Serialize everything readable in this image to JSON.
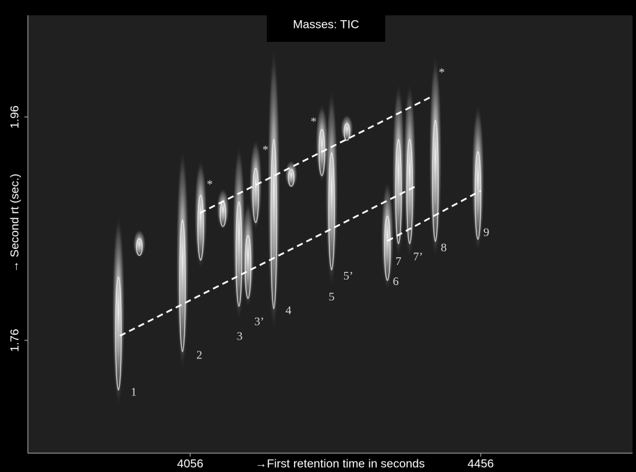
{
  "chart_data": {
    "type": "contour",
    "title": "Masses: TIC",
    "xlabel": "→First retention time in seconds",
    "ylabel": "→ Second rt (sec.)",
    "xlim": [
      3832.5,
      4665
    ],
    "ylim": [
      1.659,
      2.051
    ],
    "xticks": [
      4056,
      4456
    ],
    "yticks": [
      1.76,
      1.96
    ],
    "color": "#ffffff",
    "peaks": [
      {
        "x": 3957.2,
        "ymin": 1.702,
        "ymax": 1.871
      },
      {
        "x": 4045.4,
        "ymin": 1.734,
        "ymax": 1.931
      },
      {
        "x": 4123.1,
        "ymin": 1.778,
        "ymax": 1.934
      },
      {
        "x": 4135.6,
        "ymin": 1.79,
        "ymax": 1.884
      },
      {
        "x": 4171.1,
        "ymin": 1.768,
        "ymax": 2.021
      },
      {
        "x": 4250.7,
        "ymin": 1.809,
        "ymax": 1.984
      },
      {
        "x": 4327.5,
        "ymin": 1.806,
        "ymax": 1.902
      },
      {
        "x": 4342.8,
        "ymin": 1.834,
        "ymax": 1.99
      },
      {
        "x": 4358.2,
        "ymin": 1.834,
        "ymax": 1.99
      },
      {
        "x": 4393.6,
        "ymin": 1.834,
        "ymax": 2.015
      },
      {
        "x": 4452.2,
        "ymin": 1.84,
        "ymax": 1.971
      },
      {
        "x": 4070.4,
        "ymin": 1.824,
        "ymax": 1.921
      },
      {
        "x": 4146.2,
        "ymin": 1.859,
        "ymax": 1.94
      },
      {
        "x": 4237.3,
        "ymin": 1.902,
        "ymax": 1.971
      },
      {
        "x": 4101.1,
        "ymin": 1.859,
        "ymax": 1.896
      },
      {
        "x": 4195.1,
        "ymin": 1.896,
        "ymax": 1.921
      },
      {
        "x": 4271.8,
        "ymin": 1.937,
        "ymax": 1.962
      },
      {
        "x": 3986.0,
        "ymin": 1.834,
        "ymax": 1.859
      }
    ],
    "trend_lines": [
      {
        "x": [
          4069.4,
          4390.8
        ],
        "y": [
          1.874,
          1.979
        ]
      },
      {
        "x": [
          3959.1,
          4369.7
        ],
        "y": [
          1.764,
          1.899
        ]
      },
      {
        "x": [
          4327.5,
          4456.0
        ],
        "y": [
          1.849,
          1.894
        ]
      }
    ],
    "annotations": [
      {
        "text": "1",
        "x": 3978.3,
        "y": 1.713
      },
      {
        "text": "2",
        "x": 4068.5,
        "y": 1.746
      },
      {
        "text": "3",
        "x": 4124.1,
        "y": 1.763
      },
      {
        "text": "3’",
        "x": 4151.0,
        "y": 1.776
      },
      {
        "text": "4",
        "x": 4191.2,
        "y": 1.786
      },
      {
        "text": "5",
        "x": 4250.7,
        "y": 1.798
      },
      {
        "text": "5’",
        "x": 4273.7,
        "y": 1.817
      },
      {
        "text": "6",
        "x": 4339.0,
        "y": 1.812
      },
      {
        "text": "7",
        "x": 4342.8,
        "y": 1.83
      },
      {
        "text": "7’",
        "x": 4369.7,
        "y": 1.834
      },
      {
        "text": "8",
        "x": 4405.1,
        "y": 1.842
      },
      {
        "text": "9",
        "x": 4463.7,
        "y": 1.856
      },
      {
        "text": "*",
        "x": 4082.9,
        "y": 1.899
      },
      {
        "text": "*",
        "x": 4159.6,
        "y": 1.93
      },
      {
        "text": "*",
        "x": 4225.8,
        "y": 1.955
      },
      {
        "text": "*",
        "x": 4402.3,
        "y": 1.999
      }
    ]
  }
}
